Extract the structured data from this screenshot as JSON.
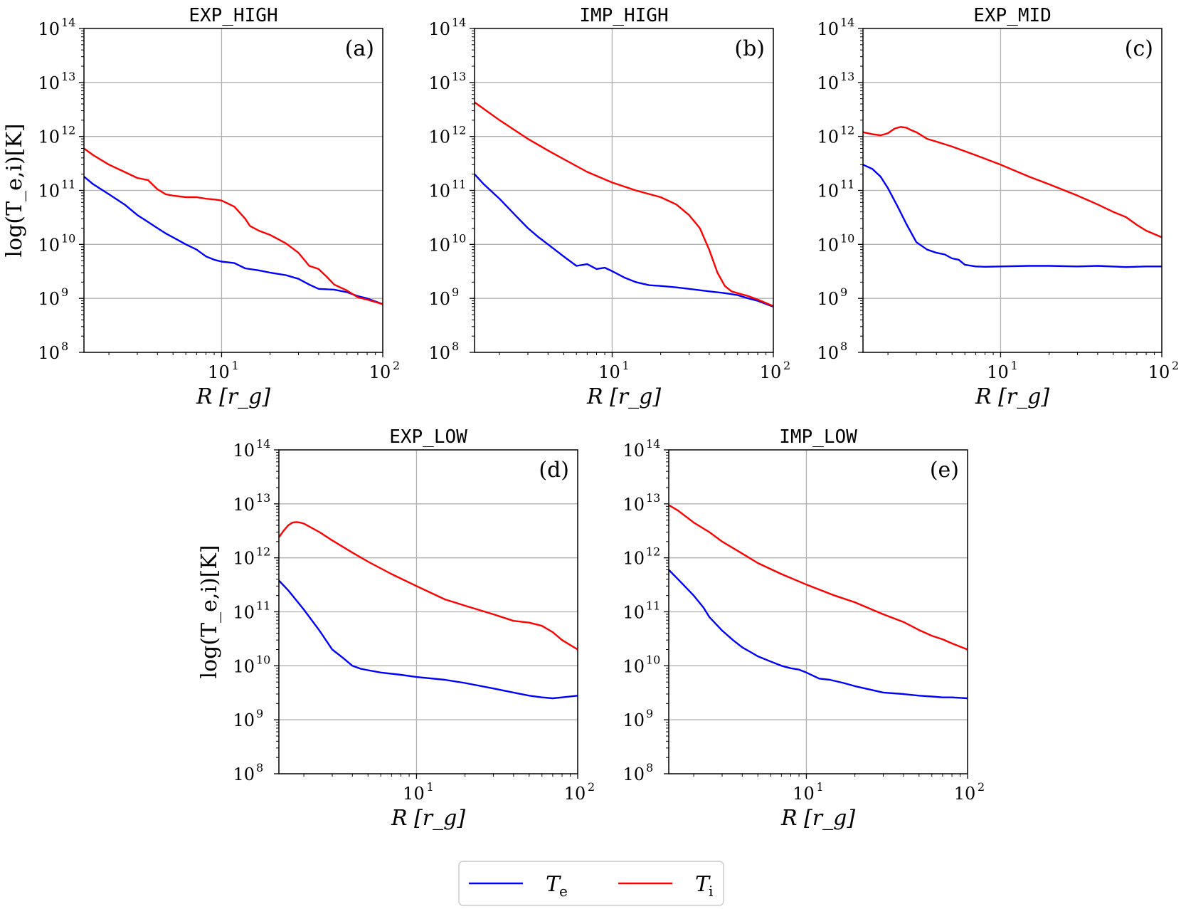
{
  "figure": {
    "legend": {
      "entries": [
        {
          "symbol": "T",
          "sub": "e",
          "color": "#0000ff"
        },
        {
          "symbol": "T",
          "sub": "i",
          "color": "#ff0000"
        }
      ]
    }
  },
  "chart_data": [
    {
      "type": "line",
      "title": "EXP_HIGH",
      "panel_tag": "(a)",
      "xlabel": "R [r_g]",
      "ylabel": "log(T_e,i)[K]",
      "xscale": "log",
      "yscale": "log",
      "xlim": [
        1.4,
        100
      ],
      "ylim": [
        100000000.0,
        100000000000000.0
      ],
      "xticks": [
        {
          "base": "10",
          "exp": "1",
          "value": 10
        },
        {
          "base": "10",
          "exp": "2",
          "value": 100
        }
      ],
      "yticks": [
        {
          "base": "10",
          "exp": "8",
          "value": 100000000.0
        },
        {
          "base": "10",
          "exp": "9",
          "value": 1000000000.0
        },
        {
          "base": "10",
          "exp": "10",
          "value": 10000000000.0
        },
        {
          "base": "10",
          "exp": "11",
          "value": 100000000000.0
        },
        {
          "base": "10",
          "exp": "12",
          "value": 1000000000000.0
        },
        {
          "base": "10",
          "exp": "13",
          "value": 10000000000000.0
        },
        {
          "base": "10",
          "exp": "14",
          "value": 100000000000000.0
        }
      ],
      "grid": true,
      "series": [
        {
          "name": "T_e",
          "color": "#0000ff",
          "x": [
            1.4,
            1.6,
            2.0,
            2.5,
            3.0,
            3.5,
            4.0,
            4.5,
            5.0,
            6.0,
            7.0,
            8.0,
            9.0,
            10,
            12,
            14,
            17,
            20,
            25,
            30,
            35,
            40,
            50,
            60,
            70,
            80,
            100
          ],
          "y": [
            180000000000.0,
            130000000000.0,
            85000000000.0,
            55000000000.0,
            35000000000.0,
            26000000000.0,
            20000000000.0,
            16000000000.0,
            13500000000.0,
            10000000000.0,
            8000000000.0,
            6000000000.0,
            5200000000.0,
            4800000000.0,
            4500000000.0,
            3600000000.0,
            3300000000.0,
            3000000000.0,
            2700000000.0,
            2300000000.0,
            1800000000.0,
            1500000000.0,
            1450000000.0,
            1300000000.0,
            1100000000.0,
            1000000000.0,
            780000000.0
          ]
        },
        {
          "name": "T_i",
          "color": "#ff0000",
          "x": [
            1.4,
            1.6,
            2.0,
            2.5,
            3.0,
            3.5,
            4.0,
            4.5,
            5.0,
            6.0,
            7.0,
            8.0,
            9.0,
            10,
            12,
            14,
            15,
            17,
            20,
            25,
            30,
            35,
            40,
            45,
            50,
            60,
            70,
            80,
            100
          ],
          "y": [
            600000000000.0,
            450000000000.0,
            300000000000.0,
            220000000000.0,
            170000000000.0,
            155000000000.0,
            105000000000.0,
            85000000000.0,
            80000000000.0,
            75000000000.0,
            75000000000.0,
            70000000000.0,
            68000000000.0,
            65000000000.0,
            50000000000.0,
            30000000000.0,
            22000000000.0,
            18000000000.0,
            15000000000.0,
            10500000000.0,
            7000000000.0,
            4000000000.0,
            3500000000.0,
            2500000000.0,
            1800000000.0,
            1400000000.0,
            1050000000.0,
            950000000.0,
            780000000.0
          ]
        }
      ]
    },
    {
      "type": "line",
      "title": "IMP_HIGH",
      "panel_tag": "(b)",
      "xlabel": "R [r_g]",
      "ylabel": "",
      "xscale": "log",
      "yscale": "log",
      "xlim": [
        1.4,
        100
      ],
      "ylim": [
        100000000.0,
        100000000000000.0
      ],
      "xticks": [
        {
          "base": "10",
          "exp": "1",
          "value": 10
        },
        {
          "base": "10",
          "exp": "2",
          "value": 100
        }
      ],
      "yticks": [
        {
          "base": "10",
          "exp": "8",
          "value": 100000000.0
        },
        {
          "base": "10",
          "exp": "9",
          "value": 1000000000.0
        },
        {
          "base": "10",
          "exp": "10",
          "value": 10000000000.0
        },
        {
          "base": "10",
          "exp": "11",
          "value": 100000000000.0
        },
        {
          "base": "10",
          "exp": "12",
          "value": 1000000000000.0
        },
        {
          "base": "10",
          "exp": "13",
          "value": 10000000000000.0
        },
        {
          "base": "10",
          "exp": "14",
          "value": 100000000000000.0
        }
      ],
      "grid": true,
      "series": [
        {
          "name": "T_e",
          "color": "#0000ff",
          "x": [
            1.4,
            1.6,
            2.0,
            2.5,
            3.0,
            3.5,
            4.0,
            5.0,
            6.0,
            7.0,
            8.0,
            9.0,
            10,
            12,
            14,
            17,
            20,
            25,
            30,
            40,
            50,
            60,
            70,
            80,
            100
          ],
          "y": [
            200000000000.0,
            130000000000.0,
            70000000000.0,
            35000000000.0,
            20000000000.0,
            13500000000.0,
            10000000000.0,
            6000000000.0,
            4000000000.0,
            4300000000.0,
            3500000000.0,
            3700000000.0,
            3200000000.0,
            2400000000.0,
            2000000000.0,
            1750000000.0,
            1700000000.0,
            1600000000.0,
            1500000000.0,
            1350000000.0,
            1250000000.0,
            1150000000.0,
            1000000000.0,
            900000000.0,
            700000000.0
          ]
        },
        {
          "name": "T_i",
          "color": "#ff0000",
          "x": [
            1.4,
            2.0,
            3.0,
            4.0,
            5.0,
            7.0,
            10,
            14,
            20,
            25,
            30,
            35,
            40,
            45,
            50,
            55,
            60,
            70,
            80,
            100
          ],
          "y": [
            4300000000000.0,
            2000000000000.0,
            900000000000.0,
            550000000000.0,
            380000000000.0,
            220000000000.0,
            140000000000.0,
            100000000000.0,
            75000000000.0,
            55000000000.0,
            35000000000.0,
            20000000000.0,
            8000000000.0,
            3000000000.0,
            1700000000.0,
            1350000000.0,
            1250000000.0,
            1100000000.0,
            950000000.0,
            720000000.0
          ]
        }
      ]
    },
    {
      "type": "line",
      "title": "EXP_MID",
      "panel_tag": "(c)",
      "xlabel": "R [r_g]",
      "ylabel": "",
      "xscale": "log",
      "yscale": "log",
      "xlim": [
        1.4,
        100
      ],
      "ylim": [
        100000000.0,
        100000000000000.0
      ],
      "xticks": [
        {
          "base": "10",
          "exp": "1",
          "value": 10
        },
        {
          "base": "10",
          "exp": "2",
          "value": 100
        }
      ],
      "yticks": [
        {
          "base": "10",
          "exp": "8",
          "value": 100000000.0
        },
        {
          "base": "10",
          "exp": "9",
          "value": 1000000000.0
        },
        {
          "base": "10",
          "exp": "10",
          "value": 10000000000.0
        },
        {
          "base": "10",
          "exp": "11",
          "value": 100000000000.0
        },
        {
          "base": "10",
          "exp": "12",
          "value": 1000000000000.0
        },
        {
          "base": "10",
          "exp": "13",
          "value": 10000000000000.0
        },
        {
          "base": "10",
          "exp": "14",
          "value": 100000000000000.0
        }
      ],
      "grid": true,
      "series": [
        {
          "name": "T_e",
          "color": "#0000ff",
          "x": [
            1.4,
            1.6,
            1.8,
            2.0,
            2.3,
            2.6,
            3.0,
            3.5,
            4.0,
            4.5,
            5.0,
            5.5,
            6.0,
            7.0,
            8.0,
            10,
            15,
            20,
            30,
            40,
            60,
            80,
            100
          ],
          "y": [
            300000000000.0,
            250000000000.0,
            180000000000.0,
            110000000000.0,
            50000000000.0,
            24000000000.0,
            11000000000.0,
            8000000000.0,
            7000000000.0,
            6500000000.0,
            5500000000.0,
            5200000000.0,
            4200000000.0,
            3900000000.0,
            3850000000.0,
            3900000000.0,
            4000000000.0,
            4000000000.0,
            3900000000.0,
            4000000000.0,
            3800000000.0,
            3900000000.0,
            3900000000.0
          ]
        },
        {
          "name": "T_i",
          "color": "#ff0000",
          "x": [
            1.4,
            1.6,
            1.8,
            2.0,
            2.2,
            2.4,
            2.6,
            2.8,
            3.0,
            3.5,
            4.0,
            5.0,
            7.0,
            10,
            15,
            20,
            30,
            40,
            50,
            60,
            70,
            80,
            100
          ],
          "y": [
            1200000000000.0,
            1100000000000.0,
            1050000000000.0,
            1150000000000.0,
            1400000000000.0,
            1500000000000.0,
            1450000000000.0,
            1300000000000.0,
            1200000000000.0,
            900000000000.0,
            800000000000.0,
            650000000000.0,
            450000000000.0,
            300000000000.0,
            180000000000.0,
            130000000000.0,
            80000000000.0,
            55000000000.0,
            40000000000.0,
            32000000000.0,
            23000000000.0,
            18000000000.0,
            13500000000.0
          ]
        }
      ]
    },
    {
      "type": "line",
      "title": "EXP_LOW",
      "panel_tag": "(d)",
      "xlabel": "R [r_g]",
      "ylabel": "log(T_e,i)[K]",
      "xscale": "log",
      "yscale": "log",
      "xlim": [
        1.4,
        100
      ],
      "ylim": [
        100000000.0,
        100000000000000.0
      ],
      "xticks": [
        {
          "base": "10",
          "exp": "1",
          "value": 10
        },
        {
          "base": "10",
          "exp": "2",
          "value": 100
        }
      ],
      "yticks": [
        {
          "base": "10",
          "exp": "8",
          "value": 100000000.0
        },
        {
          "base": "10",
          "exp": "9",
          "value": 1000000000.0
        },
        {
          "base": "10",
          "exp": "10",
          "value": 10000000000.0
        },
        {
          "base": "10",
          "exp": "11",
          "value": 100000000000.0
        },
        {
          "base": "10",
          "exp": "12",
          "value": 1000000000000.0
        },
        {
          "base": "10",
          "exp": "13",
          "value": 10000000000000.0
        },
        {
          "base": "10",
          "exp": "14",
          "value": 100000000000000.0
        }
      ],
      "grid": true,
      "series": [
        {
          "name": "T_e",
          "color": "#0000ff",
          "x": [
            1.4,
            1.6,
            2.0,
            2.5,
            3.0,
            3.5,
            4.0,
            4.5,
            5.0,
            6.0,
            8.0,
            10,
            15,
            20,
            30,
            40,
            50,
            60,
            70,
            80,
            100
          ],
          "y": [
            380000000000.0,
            250000000000.0,
            110000000000.0,
            45000000000.0,
            20000000000.0,
            14000000000.0,
            10000000000.0,
            8800000000.0,
            8300000000.0,
            7500000000.0,
            6800000000.0,
            6200000000.0,
            5500000000.0,
            4800000000.0,
            3800000000.0,
            3200000000.0,
            2800000000.0,
            2600000000.0,
            2500000000.0,
            2600000000.0,
            2800000000.0
          ]
        },
        {
          "name": "T_i",
          "color": "#ff0000",
          "x": [
            1.4,
            1.5,
            1.6,
            1.7,
            1.8,
            1.9,
            2.0,
            2.5,
            3.0,
            4.0,
            5.0,
            7.0,
            10,
            15,
            20,
            30,
            40,
            50,
            60,
            70,
            80,
            100
          ],
          "y": [
            2400000000000.0,
            3200000000000.0,
            4000000000000.0,
            4500000000000.0,
            4600000000000.0,
            4500000000000.0,
            4300000000000.0,
            3000000000000.0,
            2100000000000.0,
            1250000000000.0,
            850000000000.0,
            500000000000.0,
            300000000000.0,
            170000000000.0,
            130000000000.0,
            90000000000.0,
            68000000000.0,
            63000000000.0,
            55000000000.0,
            42000000000.0,
            30000000000.0,
            20000000000.0
          ]
        }
      ]
    },
    {
      "type": "line",
      "title": "IMP_LOW",
      "panel_tag": "(e)",
      "xlabel": "R [r_g]",
      "ylabel": "",
      "xscale": "log",
      "yscale": "log",
      "xlim": [
        1.4,
        100
      ],
      "ylim": [
        100000000.0,
        100000000000000.0
      ],
      "xticks": [
        {
          "base": "10",
          "exp": "1",
          "value": 10
        },
        {
          "base": "10",
          "exp": "2",
          "value": 100
        }
      ],
      "yticks": [
        {
          "base": "10",
          "exp": "8",
          "value": 100000000.0
        },
        {
          "base": "10",
          "exp": "9",
          "value": 1000000000.0
        },
        {
          "base": "10",
          "exp": "10",
          "value": 10000000000.0
        },
        {
          "base": "10",
          "exp": "11",
          "value": 100000000000.0
        },
        {
          "base": "10",
          "exp": "12",
          "value": 1000000000000.0
        },
        {
          "base": "10",
          "exp": "13",
          "value": 10000000000000.0
        },
        {
          "base": "10",
          "exp": "14",
          "value": 100000000000000.0
        }
      ],
      "grid": true,
      "series": [
        {
          "name": "T_e",
          "color": "#0000ff",
          "x": [
            1.4,
            1.6,
            2.0,
            2.3,
            2.5,
            3.0,
            3.5,
            4.0,
            4.5,
            5.0,
            6.0,
            7.0,
            8.0,
            9.0,
            10,
            12,
            14,
            17,
            20,
            30,
            40,
            50,
            60,
            70,
            80,
            100
          ],
          "y": [
            600000000000.0,
            400000000000.0,
            200000000000.0,
            120000000000.0,
            80000000000.0,
            45000000000.0,
            30000000000.0,
            22000000000.0,
            18000000000.0,
            15000000000.0,
            12000000000.0,
            10000000000.0,
            9000000000.0,
            8500000000.0,
            7500000000.0,
            5800000000.0,
            5500000000.0,
            4800000000.0,
            4200000000.0,
            3200000000.0,
            3000000000.0,
            2800000000.0,
            2700000000.0,
            2600000000.0,
            2600000000.0,
            2500000000.0
          ]
        },
        {
          "name": "T_i",
          "color": "#ff0000",
          "x": [
            1.4,
            1.6,
            2.0,
            2.5,
            3.0,
            4.0,
            5.0,
            7.0,
            10,
            15,
            20,
            30,
            40,
            50,
            60,
            70,
            80,
            100
          ],
          "y": [
            9500000000000.0,
            7500000000000.0,
            4500000000000.0,
            3000000000000.0,
            2000000000000.0,
            1200000000000.0,
            800000000000.0,
            500000000000.0,
            320000000000.0,
            200000000000.0,
            150000000000.0,
            90000000000.0,
            65000000000.0,
            46000000000.0,
            36000000000.0,
            31000000000.0,
            26000000000.0,
            20000000000.0
          ]
        }
      ]
    }
  ]
}
